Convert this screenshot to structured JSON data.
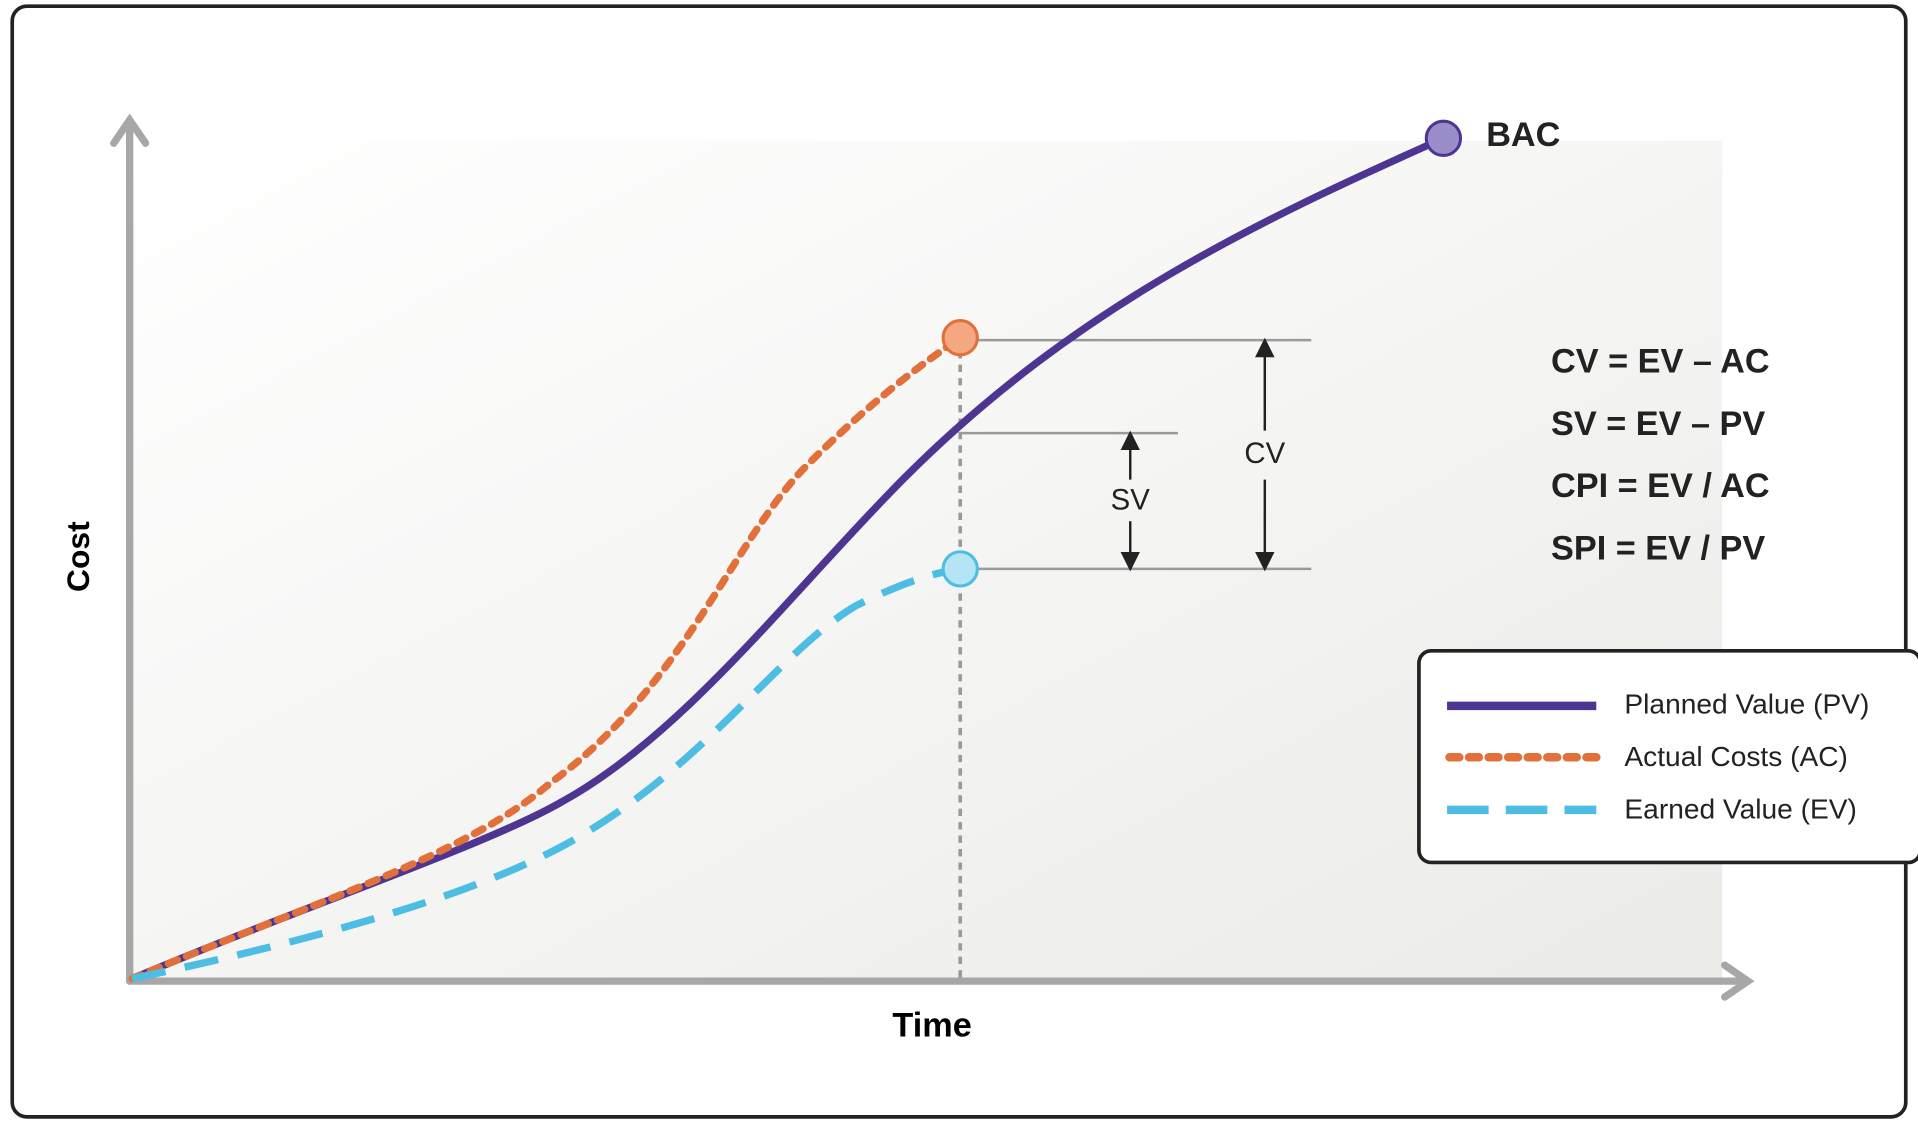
{
  "axes": {
    "y_label": "Cost",
    "x_label": "Time"
  },
  "bac_label": "BAC",
  "cv_label": "CV",
  "sv_label": "SV",
  "formulas": [
    "CV = EV – AC",
    "SV = EV – PV",
    "CPI = EV / AC",
    "SPI = EV / PV"
  ],
  "legend": [
    "Planned Value (PV)",
    "Actual Costs (AC)",
    "Earned Value (EV)"
  ]
}
